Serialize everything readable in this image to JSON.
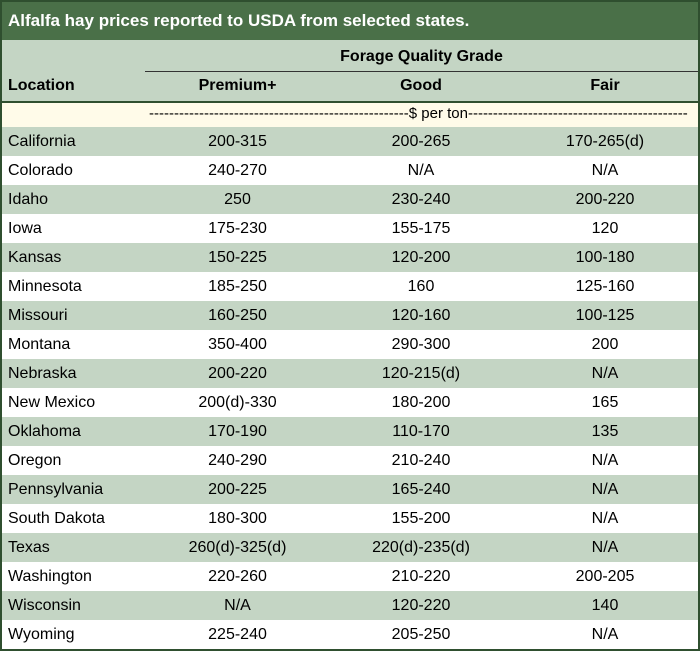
{
  "title": "Alfalfa hay prices reported to USDA from selected states.",
  "group_header": "Forage Quality Grade",
  "columns": {
    "location": "Location",
    "premium": "Premium+",
    "good": "Good",
    "fair": "Fair"
  },
  "unit_line": "----------------------------------------------------$ per ton------------------------------------------------------",
  "rows": [
    {
      "location": "California",
      "premium": "200-315",
      "good": "200-265",
      "fair": "170-265(d)"
    },
    {
      "location": "Colorado",
      "premium": "240-270",
      "good": "N/A",
      "fair": "N/A"
    },
    {
      "location": "Idaho",
      "premium": "250",
      "good": "230-240",
      "fair": "200-220"
    },
    {
      "location": "Iowa",
      "premium": "175-230",
      "good": "155-175",
      "fair": "120"
    },
    {
      "location": "Kansas",
      "premium": "150-225",
      "good": "120-200",
      "fair": "100-180"
    },
    {
      "location": "Minnesota",
      "premium": "185-250",
      "good": "160",
      "fair": "125-160"
    },
    {
      "location": "Missouri",
      "premium": "160-250",
      "good": "120-160",
      "fair": "100-125"
    },
    {
      "location": "Montana",
      "premium": "350-400",
      "good": "290-300",
      "fair": "200"
    },
    {
      "location": "Nebraska",
      "premium": "200-220",
      "good": "120-215(d)",
      "fair": "N/A"
    },
    {
      "location": "New Mexico",
      "premium": "200(d)-330",
      "good": "180-200",
      "fair": "165"
    },
    {
      "location": "Oklahoma",
      "premium": "170-190",
      "good": "110-170",
      "fair": "135"
    },
    {
      "location": "Oregon",
      "premium": "240-290",
      "good": "210-240",
      "fair": "N/A"
    },
    {
      "location": "Pennsylvania",
      "premium": "200-225",
      "good": "165-240",
      "fair": "N/A"
    },
    {
      "location": "South Dakota",
      "premium": "180-300",
      "good": "155-200",
      "fair": "N/A"
    },
    {
      "location": "Texas",
      "premium": "260(d)-325(d)",
      "good": "220(d)-235(d)",
      "fair": "N/A"
    },
    {
      "location": "Washington",
      "premium": "220-260",
      "good": "210-220",
      "fair": "200-205"
    },
    {
      "location": "Wisconsin",
      "premium": "N/A",
      "good": "120-220",
      "fair": "140"
    },
    {
      "location": "Wyoming",
      "premium": "225-240",
      "good": "205-250",
      "fair": "N/A"
    }
  ],
  "colors": {
    "title_bg": "#4a7048",
    "title_text": "#ffffff",
    "band": "#c4d5c4",
    "unit_row_bg": "#fffbe9",
    "border": "#2f4f2f"
  }
}
